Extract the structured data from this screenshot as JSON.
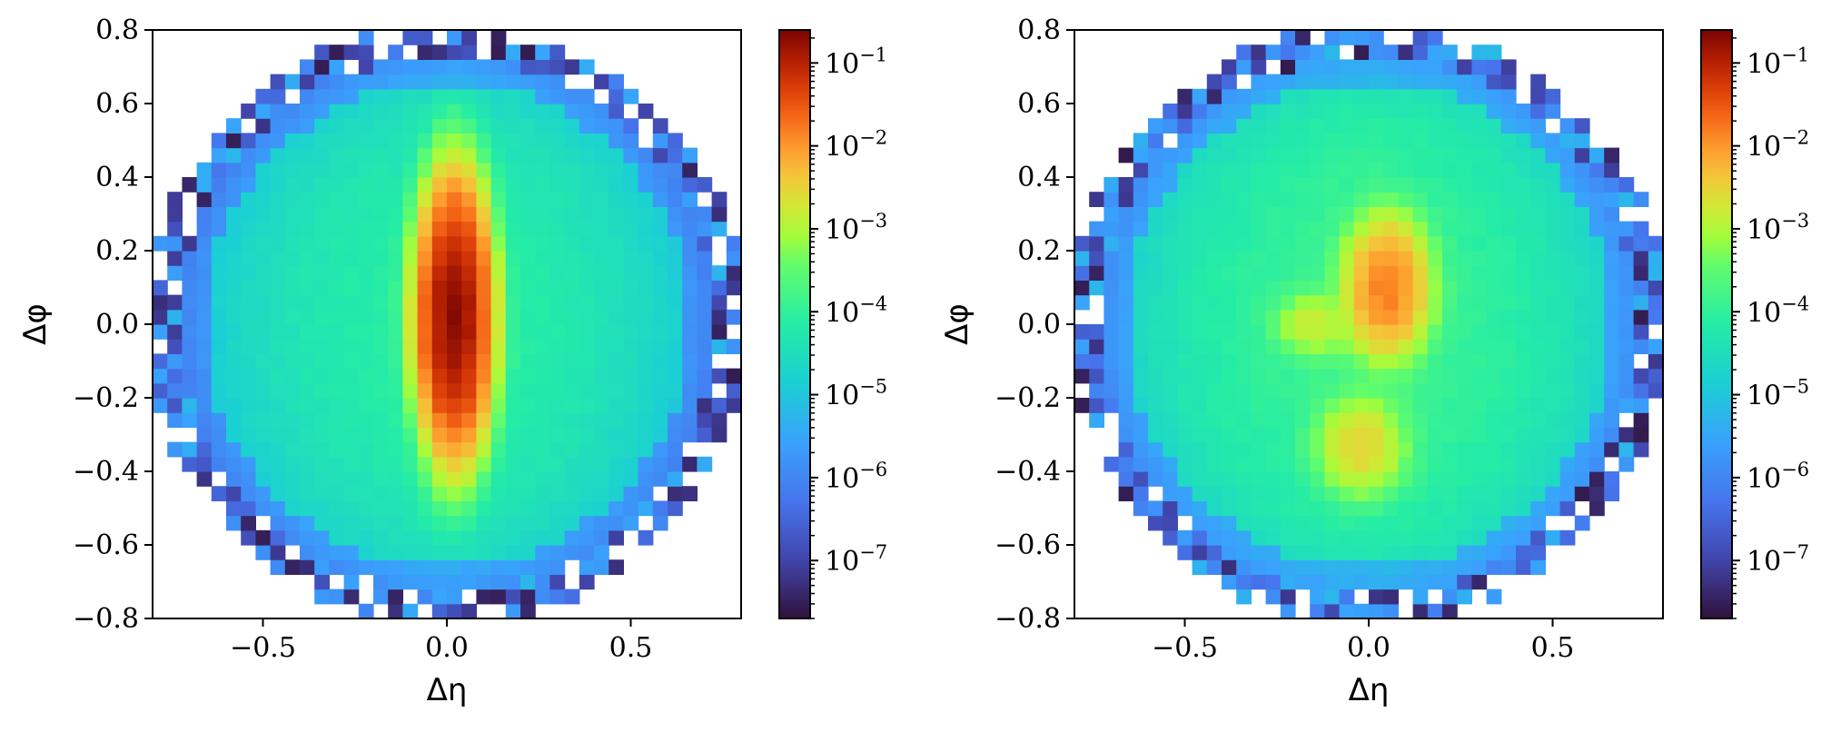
{
  "chart_data": [
    {
      "type": "heatmap",
      "xlabel": "Δη",
      "ylabel": "Δφ",
      "xlim": [
        -0.8,
        0.8
      ],
      "ylim": [
        -0.8,
        0.8
      ],
      "bins": 40,
      "circle_radius": 0.8,
      "colormap": "turbo",
      "colorbar": {
        "scale": "log",
        "range": [
          2e-08,
          0.25
        ],
        "ticks": [
          {
            "base": "10",
            "exp": "−7",
            "value": 1e-07
          },
          {
            "base": "10",
            "exp": "−6",
            "value": 1e-06
          },
          {
            "base": "10",
            "exp": "−5",
            "value": 1e-05
          },
          {
            "base": "10",
            "exp": "−4",
            "value": 0.0001
          },
          {
            "base": "10",
            "exp": "−3",
            "value": 0.001
          },
          {
            "base": "10",
            "exp": "−2",
            "value": 0.01
          },
          {
            "base": "10",
            "exp": "−1",
            "value": 0.1
          }
        ]
      },
      "xticks": [
        {
          "value": -0.5,
          "label": "−0.5"
        },
        {
          "value": 0.0,
          "label": "0.0"
        },
        {
          "value": 0.5,
          "label": "0.5"
        }
      ],
      "yticks": [
        {
          "value": 0.8,
          "label": "0.8"
        },
        {
          "value": 0.6,
          "label": "0.6"
        },
        {
          "value": 0.4,
          "label": "0.4"
        },
        {
          "value": 0.2,
          "label": "0.2"
        },
        {
          "value": 0.0,
          "label": "0.0"
        },
        {
          "value": -0.2,
          "label": "−0.2"
        },
        {
          "value": -0.4,
          "label": "−0.4"
        },
        {
          "value": -0.6,
          "label": "−0.6"
        },
        {
          "value": -0.8,
          "label": "−0.8"
        }
      ],
      "background_level": 3e-05,
      "peaks": [
        {
          "eta": 0.02,
          "phi": 0.02,
          "peak_value": 0.2,
          "width_eta": 0.06,
          "width_phi": 0.22
        }
      ]
    },
    {
      "type": "heatmap",
      "xlabel": "Δη",
      "ylabel": "Δφ",
      "xlim": [
        -0.8,
        0.8
      ],
      "ylim": [
        -0.8,
        0.8
      ],
      "bins": 40,
      "circle_radius": 0.8,
      "colormap": "turbo",
      "colorbar": {
        "scale": "log",
        "range": [
          2e-08,
          0.25
        ],
        "ticks": [
          {
            "base": "10",
            "exp": "−7",
            "value": 1e-07
          },
          {
            "base": "10",
            "exp": "−6",
            "value": 1e-06
          },
          {
            "base": "10",
            "exp": "−5",
            "value": 1e-05
          },
          {
            "base": "10",
            "exp": "−4",
            "value": 0.0001
          },
          {
            "base": "10",
            "exp": "−3",
            "value": 0.001
          },
          {
            "base": "10",
            "exp": "−2",
            "value": 0.01
          },
          {
            "base": "10",
            "exp": "−1",
            "value": 0.1
          }
        ]
      },
      "xticks": [
        {
          "value": -0.5,
          "label": "−0.5"
        },
        {
          "value": 0.0,
          "label": "0.0"
        },
        {
          "value": 0.5,
          "label": "0.5"
        }
      ],
      "yticks": [
        {
          "value": 0.8,
          "label": "0.8"
        },
        {
          "value": 0.6,
          "label": "0.6"
        },
        {
          "value": 0.4,
          "label": "0.4"
        },
        {
          "value": 0.2,
          "label": "0.2"
        },
        {
          "value": 0.0,
          "label": "0.0"
        },
        {
          "value": -0.2,
          "label": "−0.2"
        },
        {
          "value": -0.4,
          "label": "−0.4"
        },
        {
          "value": -0.6,
          "label": "−0.6"
        },
        {
          "value": -0.8,
          "label": "−0.8"
        }
      ],
      "background_level": 5e-05,
      "peaks": [
        {
          "eta": 0.05,
          "phi": 0.1,
          "peak_value": 0.015,
          "width_eta": 0.08,
          "width_phi": 0.13
        },
        {
          "eta": -0.02,
          "phi": -0.33,
          "peak_value": 0.003,
          "width_eta": 0.09,
          "width_phi": 0.1
        },
        {
          "eta": -0.15,
          "phi": 0.0,
          "peak_value": 0.0015,
          "width_eta": 0.08,
          "width_phi": 0.07
        }
      ]
    }
  ]
}
